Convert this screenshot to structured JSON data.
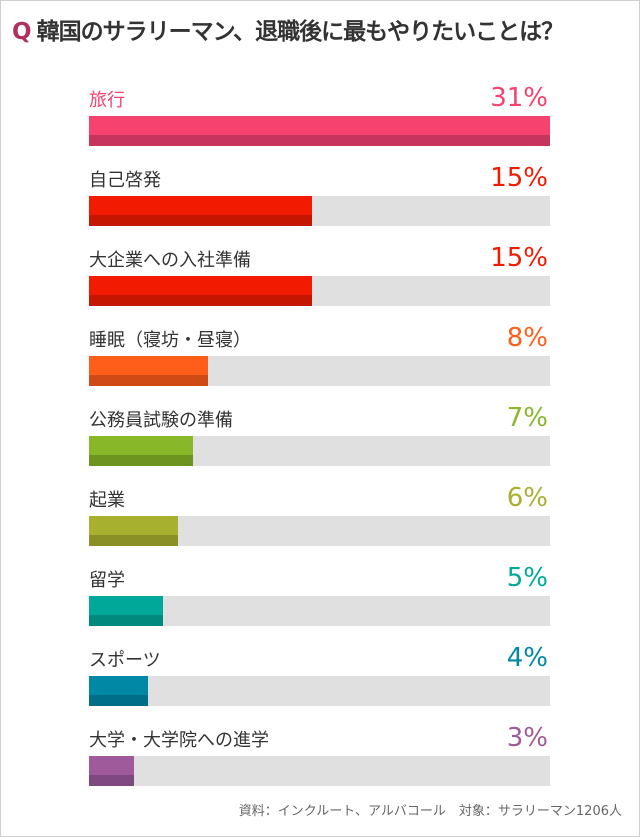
{
  "title": {
    "q": "Q",
    "text": "韓国のサラリーマン、退職後に最もやりたいことは？"
  },
  "source": "資料：インクルート、アルバコール　対象：サラリーマン1206人",
  "rows": [
    {
      "label": "旅行",
      "pct": "31%",
      "value": 31,
      "color": "#F5426E",
      "dark": "#C8355C",
      "label_color": "#F5426E"
    },
    {
      "label": "自己啓発",
      "pct": "15%",
      "value": 15,
      "color": "#F21A00",
      "dark": "#C41600",
      "label_color": "#333333"
    },
    {
      "label": "大企業への入社準備",
      "pct": "15%",
      "value": 15,
      "color": "#F21A00",
      "dark": "#C41600",
      "label_color": "#333333"
    },
    {
      "label": "睡眠（寝坊・昼寝）",
      "pct": "8%",
      "value": 8,
      "color": "#FF5E1A",
      "dark": "#D04A16",
      "label_color": "#333333"
    },
    {
      "label": "公務員試験の準備",
      "pct": "7%",
      "value": 7,
      "color": "#88B82A",
      "dark": "#6E9420",
      "label_color": "#333333"
    },
    {
      "label": "起業",
      "pct": "6%",
      "value": 6,
      "color": "#A8B030",
      "dark": "#8A9026",
      "label_color": "#333333"
    },
    {
      "label": "留学",
      "pct": "5%",
      "value": 5,
      "color": "#00A89A",
      "dark": "#008A7E",
      "label_color": "#333333"
    },
    {
      "label": "スポーツ",
      "pct": "4%",
      "value": 4,
      "color": "#0088A4",
      "dark": "#006E86",
      "label_color": "#333333"
    },
    {
      "label": "大学・大学院への進学",
      "pct": "3%",
      "value": 3,
      "color": "#9E5A9A",
      "dark": "#7E4880",
      "label_color": "#333333"
    }
  ],
  "chart_data": {
    "type": "bar",
    "orientation": "horizontal",
    "title": "Q 韓国のサラリーマン、退職後に最もやりたいことは？",
    "categories": [
      "旅行",
      "自己啓発",
      "大企業への入社準備",
      "睡眠（寝坊・昼寝）",
      "公務員試験の準備",
      "起業",
      "留学",
      "スポーツ",
      "大学・大学院への進学"
    ],
    "values": [
      31,
      15,
      15,
      8,
      7,
      6,
      5,
      4,
      3
    ],
    "unit": "%",
    "xlabel": "",
    "ylabel": "",
    "xlim": [
      0,
      31
    ],
    "grid": false,
    "legend": null,
    "annotation": "資料：インクルート、アルバコール　対象：サラリーマン1206人"
  }
}
